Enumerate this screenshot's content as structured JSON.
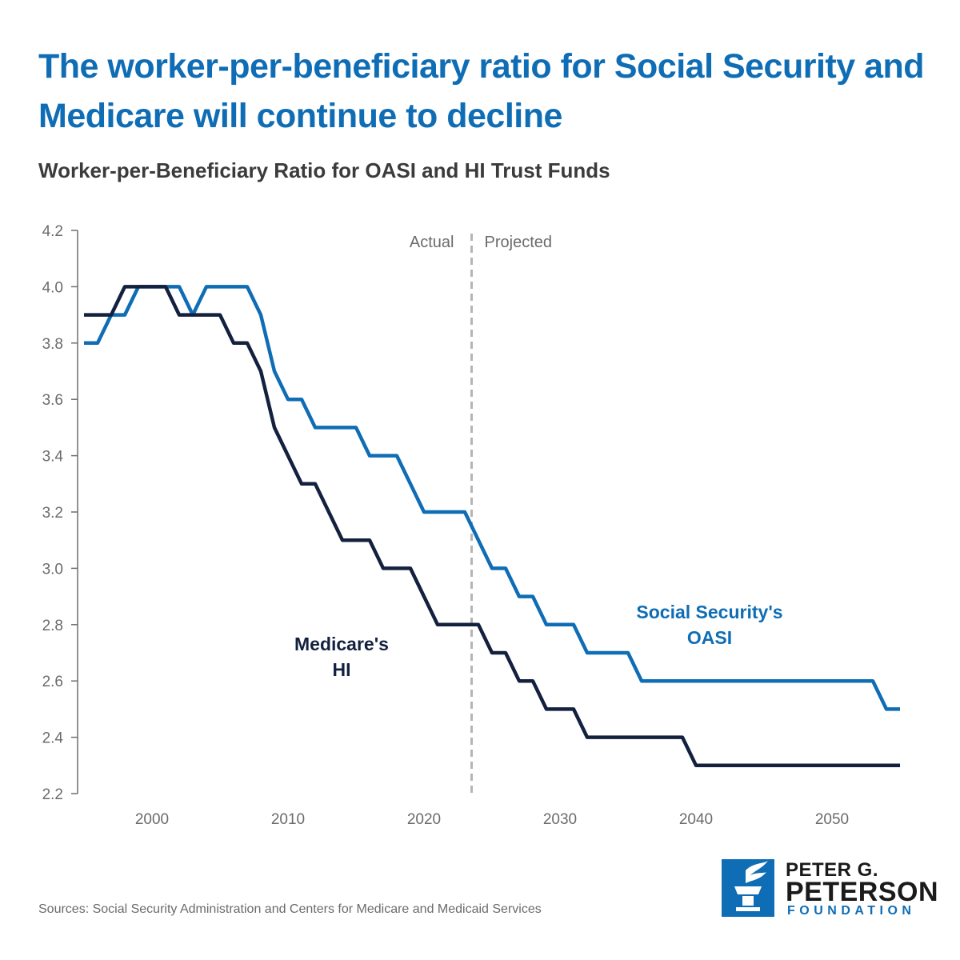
{
  "header": {
    "title": "The worker-per-beneficiary ratio for Social Security and Medicare will continue to decline",
    "subtitle": "Worker-per-Beneficiary Ratio for OASI and HI Trust Funds"
  },
  "footer": {
    "source": "Sources: Social Security Administration and Centers for Medicare and Medicaid Services"
  },
  "logo": {
    "line1": "PETER G.",
    "line2": "PETERSON",
    "line3": "FOUNDATION",
    "icon": "torch-icon"
  },
  "colors": {
    "oasi": "#0f6db5",
    "hi": "#13213f",
    "title": "#0f6db5",
    "axis": "#6e6e6e",
    "divider": "#b5b5b5"
  },
  "chart_data": {
    "type": "line",
    "title": "Worker-per-Beneficiary Ratio for OASI and HI Trust Funds",
    "xlabel": "",
    "ylabel": "",
    "xlim": [
      1995,
      2055
    ],
    "ylim": [
      2.2,
      4.2
    ],
    "x_ticks": [
      2000,
      2010,
      2020,
      2030,
      2040,
      2050
    ],
    "y_ticks": [
      2.2,
      2.4,
      2.6,
      2.8,
      3.0,
      3.2,
      3.4,
      3.6,
      3.8,
      4.0,
      4.2
    ],
    "grid": false,
    "divider": {
      "x": 2023.5,
      "left_label": "Actual",
      "right_label": "Projected"
    },
    "series": [
      {
        "name": "Social Security's OASI",
        "label_lines": [
          "Social Security's",
          "OASI"
        ],
        "x": [
          1995,
          1996,
          1997,
          1998,
          1999,
          2000,
          2001,
          2002,
          2003,
          2004,
          2005,
          2006,
          2007,
          2008,
          2009,
          2010,
          2011,
          2012,
          2013,
          2014,
          2015,
          2016,
          2017,
          2018,
          2019,
          2020,
          2021,
          2022,
          2023,
          2024,
          2025,
          2026,
          2027,
          2028,
          2029,
          2030,
          2031,
          2032,
          2033,
          2034,
          2035,
          2036,
          2037,
          2038,
          2039,
          2040,
          2041,
          2042,
          2043,
          2044,
          2045,
          2046,
          2047,
          2048,
          2049,
          2050,
          2051,
          2052,
          2053,
          2054,
          2055
        ],
        "values": [
          3.8,
          3.8,
          3.9,
          3.9,
          4.0,
          4.0,
          4.0,
          4.0,
          3.9,
          4.0,
          4.0,
          4.0,
          4.0,
          3.9,
          3.7,
          3.6,
          3.6,
          3.5,
          3.5,
          3.5,
          3.5,
          3.4,
          3.4,
          3.4,
          3.3,
          3.2,
          3.2,
          3.2,
          3.2,
          3.1,
          3.0,
          3.0,
          2.9,
          2.9,
          2.8,
          2.8,
          2.8,
          2.7,
          2.7,
          2.7,
          2.7,
          2.6,
          2.6,
          2.6,
          2.6,
          2.6,
          2.6,
          2.6,
          2.6,
          2.6,
          2.6,
          2.6,
          2.6,
          2.6,
          2.6,
          2.6,
          2.6,
          2.6,
          2.6,
          2.5,
          2.5
        ]
      },
      {
        "name": "Medicare's HI",
        "label_lines": [
          "Medicare's",
          "HI"
        ],
        "x": [
          1995,
          1996,
          1997,
          1998,
          1999,
          2000,
          2001,
          2002,
          2003,
          2004,
          2005,
          2006,
          2007,
          2008,
          2009,
          2010,
          2011,
          2012,
          2013,
          2014,
          2015,
          2016,
          2017,
          2018,
          2019,
          2020,
          2021,
          2022,
          2023,
          2024,
          2025,
          2026,
          2027,
          2028,
          2029,
          2030,
          2031,
          2032,
          2033,
          2034,
          2035,
          2036,
          2037,
          2038,
          2039,
          2040,
          2041,
          2042,
          2043,
          2044,
          2045,
          2046,
          2047,
          2048,
          2049,
          2050,
          2051,
          2052,
          2053,
          2054,
          2055
        ],
        "values": [
          3.9,
          3.9,
          3.9,
          4.0,
          4.0,
          4.0,
          4.0,
          3.9,
          3.9,
          3.9,
          3.9,
          3.8,
          3.8,
          3.7,
          3.5,
          3.4,
          3.3,
          3.3,
          3.2,
          3.1,
          3.1,
          3.1,
          3.0,
          3.0,
          3.0,
          2.9,
          2.8,
          2.8,
          2.8,
          2.8,
          2.7,
          2.7,
          2.6,
          2.6,
          2.5,
          2.5,
          2.5,
          2.4,
          2.4,
          2.4,
          2.4,
          2.4,
          2.4,
          2.4,
          2.4,
          2.3,
          2.3,
          2.3,
          2.3,
          2.3,
          2.3,
          2.3,
          2.3,
          2.3,
          2.3,
          2.3,
          2.3,
          2.3,
          2.3,
          2.3,
          2.3
        ]
      }
    ]
  }
}
